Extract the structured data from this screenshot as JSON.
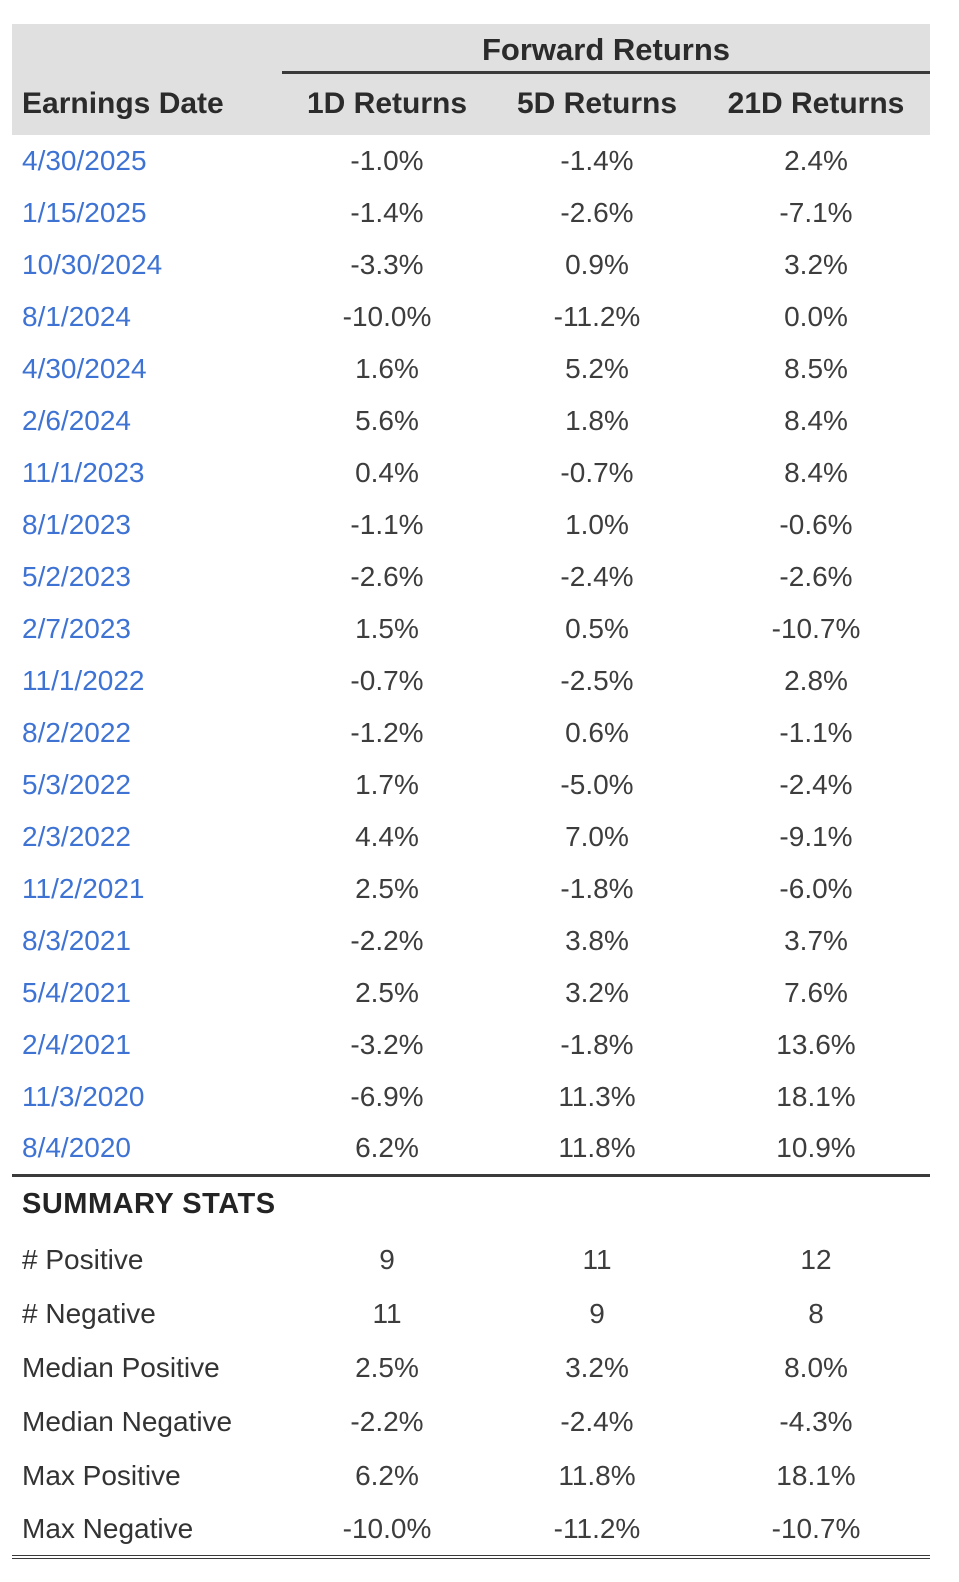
{
  "header": {
    "group_title": "Forward Returns",
    "columns": [
      "Earnings Date",
      "1D Returns",
      "5D Returns",
      "21D Returns"
    ]
  },
  "rows": [
    {
      "date": "4/30/2025",
      "d1": "-1.0%",
      "d5": "-1.4%",
      "d21": "2.4%"
    },
    {
      "date": "1/15/2025",
      "d1": "-1.4%",
      "d5": "-2.6%",
      "d21": "-7.1%"
    },
    {
      "date": "10/30/2024",
      "d1": "-3.3%",
      "d5": "0.9%",
      "d21": "3.2%"
    },
    {
      "date": "8/1/2024",
      "d1": "-10.0%",
      "d5": "-11.2%",
      "d21": "0.0%"
    },
    {
      "date": "4/30/2024",
      "d1": "1.6%",
      "d5": "5.2%",
      "d21": "8.5%"
    },
    {
      "date": "2/6/2024",
      "d1": "5.6%",
      "d5": "1.8%",
      "d21": "8.4%"
    },
    {
      "date": "11/1/2023",
      "d1": "0.4%",
      "d5": "-0.7%",
      "d21": "8.4%"
    },
    {
      "date": "8/1/2023",
      "d1": "-1.1%",
      "d5": "1.0%",
      "d21": "-0.6%"
    },
    {
      "date": "5/2/2023",
      "d1": "-2.6%",
      "d5": "-2.4%",
      "d21": "-2.6%"
    },
    {
      "date": "2/7/2023",
      "d1": "1.5%",
      "d5": "0.5%",
      "d21": "-10.7%"
    },
    {
      "date": "11/1/2022",
      "d1": "-0.7%",
      "d5": "-2.5%",
      "d21": "2.8%"
    },
    {
      "date": "8/2/2022",
      "d1": "-1.2%",
      "d5": "0.6%",
      "d21": "-1.1%"
    },
    {
      "date": "5/3/2022",
      "d1": "1.7%",
      "d5": "-5.0%",
      "d21": "-2.4%"
    },
    {
      "date": "2/3/2022",
      "d1": "4.4%",
      "d5": "7.0%",
      "d21": "-9.1%"
    },
    {
      "date": "11/2/2021",
      "d1": "2.5%",
      "d5": "-1.8%",
      "d21": "-6.0%"
    },
    {
      "date": "8/3/2021",
      "d1": "-2.2%",
      "d5": "3.8%",
      "d21": "3.7%"
    },
    {
      "date": "5/4/2021",
      "d1": "2.5%",
      "d5": "3.2%",
      "d21": "7.6%"
    },
    {
      "date": "2/4/2021",
      "d1": "-3.2%",
      "d5": "-1.8%",
      "d21": "13.6%"
    },
    {
      "date": "11/3/2020",
      "d1": "-6.9%",
      "d5": "11.3%",
      "d21": "18.1%"
    },
    {
      "date": "8/4/2020",
      "d1": "6.2%",
      "d5": "11.8%",
      "d21": "10.9%"
    }
  ],
  "summary": {
    "title": "SUMMARY STATS",
    "rows": [
      {
        "label": "# Positive",
        "d1": "9",
        "d5": "11",
        "d21": "12"
      },
      {
        "label": "# Negative",
        "d1": "11",
        "d5": "9",
        "d21": "8"
      },
      {
        "label": "Median Positive",
        "d1": "2.5%",
        "d5": "3.2%",
        "d21": "8.0%"
      },
      {
        "label": "Median Negative",
        "d1": "-2.2%",
        "d5": "-2.4%",
        "d21": "-4.3%"
      },
      {
        "label": "Max Positive",
        "d1": "6.2%",
        "d5": "11.8%",
        "d21": "18.1%"
      },
      {
        "label": "Max Negative",
        "d1": "-10.0%",
        "d5": "-11.2%",
        "d21": "-10.7%"
      }
    ]
  },
  "colors": {
    "header_bg": "#e0e0e0",
    "date_link_blue": "#3e73d4",
    "rule_dark": "#3a3a3a",
    "value_text": "#3d3d3d",
    "header_text": "#2b2b2b"
  },
  "chart_data": {
    "type": "table",
    "title": "Forward Returns",
    "columns": [
      "Earnings Date",
      "1D Returns",
      "5D Returns",
      "21D Returns"
    ],
    "rows": [
      [
        "4/30/2025",
        -1.0,
        -1.4,
        2.4
      ],
      [
        "1/15/2025",
        -1.4,
        -2.6,
        -7.1
      ],
      [
        "10/30/2024",
        -3.3,
        0.9,
        3.2
      ],
      [
        "8/1/2024",
        -10.0,
        -11.2,
        0.0
      ],
      [
        "4/30/2024",
        1.6,
        5.2,
        8.5
      ],
      [
        "2/6/2024",
        5.6,
        1.8,
        8.4
      ],
      [
        "11/1/2023",
        0.4,
        -0.7,
        8.4
      ],
      [
        "8/1/2023",
        -1.1,
        1.0,
        -0.6
      ],
      [
        "5/2/2023",
        -2.6,
        -2.4,
        -2.6
      ],
      [
        "2/7/2023",
        1.5,
        0.5,
        -10.7
      ],
      [
        "11/1/2022",
        -0.7,
        -2.5,
        2.8
      ],
      [
        "8/2/2022",
        -1.2,
        0.6,
        -1.1
      ],
      [
        "5/3/2022",
        1.7,
        -5.0,
        -2.4
      ],
      [
        "2/3/2022",
        4.4,
        7.0,
        -9.1
      ],
      [
        "11/2/2021",
        2.5,
        -1.8,
        -6.0
      ],
      [
        "8/3/2021",
        -2.2,
        3.8,
        3.7
      ],
      [
        "5/4/2021",
        2.5,
        3.2,
        7.6
      ],
      [
        "2/4/2021",
        -3.2,
        -1.8,
        13.6
      ],
      [
        "11/3/2020",
        -6.9,
        11.3,
        18.1
      ],
      [
        "8/4/2020",
        6.2,
        11.8,
        10.9
      ]
    ],
    "summary_stats": {
      "labels": [
        "# Positive",
        "# Negative",
        "Median Positive",
        "Median Negative",
        "Max Positive",
        "Max Negative"
      ],
      "1D": [
        9,
        11,
        2.5,
        -2.2,
        6.2,
        -10.0
      ],
      "5D": [
        11,
        9,
        3.2,
        -2.4,
        11.8,
        -11.2
      ],
      "21D": [
        12,
        8,
        8.0,
        -4.3,
        18.1,
        -10.7
      ]
    },
    "units": "percent"
  }
}
